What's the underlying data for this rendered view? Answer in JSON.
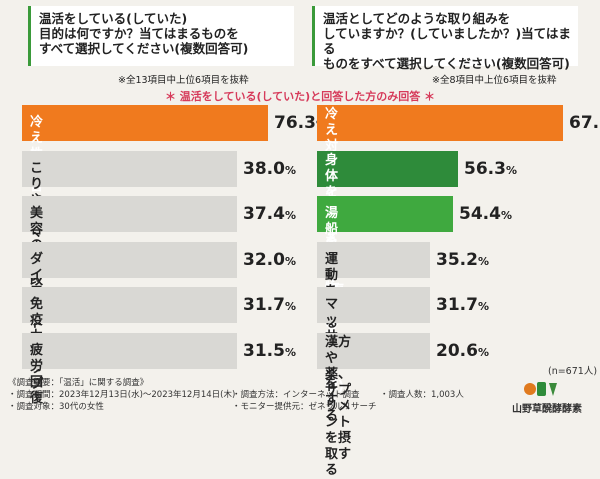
{
  "left_question": "温活をしている(していた)\n目的は何ですか？当てはまるものを\nすべて選択してください(複数回答可)",
  "left_note": "※全13項目中上位6項目を抜粋",
  "right_question": "温活としてどのような取り組みを\nしていますか？(していましたか？)当てはまる\nものをすべて選択してください(複数回答可)",
  "right_note": "※全8項目中上位6項目を抜粋",
  "center_note": "＊ 温活をしている(していた)と回答した方のみ回答 ＊",
  "n_note": "(n=671人)",
  "colors": {
    "orange": "#f07a1e",
    "green": "#2e8b3a",
    "light_green": "#3fa93f",
    "gray": "#d9d8d4"
  },
  "chart_data": [
    {
      "type": "bar",
      "orientation": "horizontal",
      "title": "温活をしている(していた)目的は何ですか？当てはまるものをすべて選択してください(複数回答可)",
      "unit": "%",
      "categories": [
        "冷え性改善",
        "こりやむくみの改善",
        "美容のため",
        "ダイエット",
        "免疫力アップ",
        "疲労回復"
      ],
      "values": [
        76.3,
        38.0,
        37.4,
        32.0,
        31.7,
        31.5
      ],
      "value_labels": [
        "76.3",
        "38.0",
        "37.4",
        "32.0",
        "31.7",
        "31.5"
      ],
      "highlight": [
        "orange",
        "none",
        "none",
        "none",
        "none",
        "none"
      ]
    },
    {
      "type": "bar",
      "orientation": "horizontal",
      "title": "温活としてどのような取り組みをしていますか？(していましたか？)当てはまるものをすべて選択してください(複数回答可)",
      "unit": "%",
      "categories": [
        "冷え対策アイテムを使う\n(腹巻や靴下など)",
        "身体を温める\n食べ物や飲み物を摂る",
        "湯船に長く浸かる",
        "運動をする",
        "マッサージをする",
        "漢方や薬、\nサプリメントを摂取する"
      ],
      "values": [
        67.7,
        56.3,
        54.4,
        35.2,
        31.7,
        20.6
      ],
      "value_labels": [
        "67.7",
        "56.3",
        "54.4",
        "35.2",
        "31.7",
        "20.6"
      ],
      "highlight": [
        "orange",
        "green",
        "light_green",
        "none",
        "none",
        "none"
      ]
    }
  ],
  "footer": {
    "title": "《調査概要：「温活」に関する調査》",
    "period": "・調査期間：2023年12月13日(水)～2023年12月14日(木)",
    "target": "・調査対象：30代の女性",
    "method": "・調査方法：インターネット調査",
    "monitor": "・モニター提供元：ゼネラルリサーチ",
    "count": "・調査人数：1,003人"
  },
  "logo_text": "山野草醗酵酵素"
}
